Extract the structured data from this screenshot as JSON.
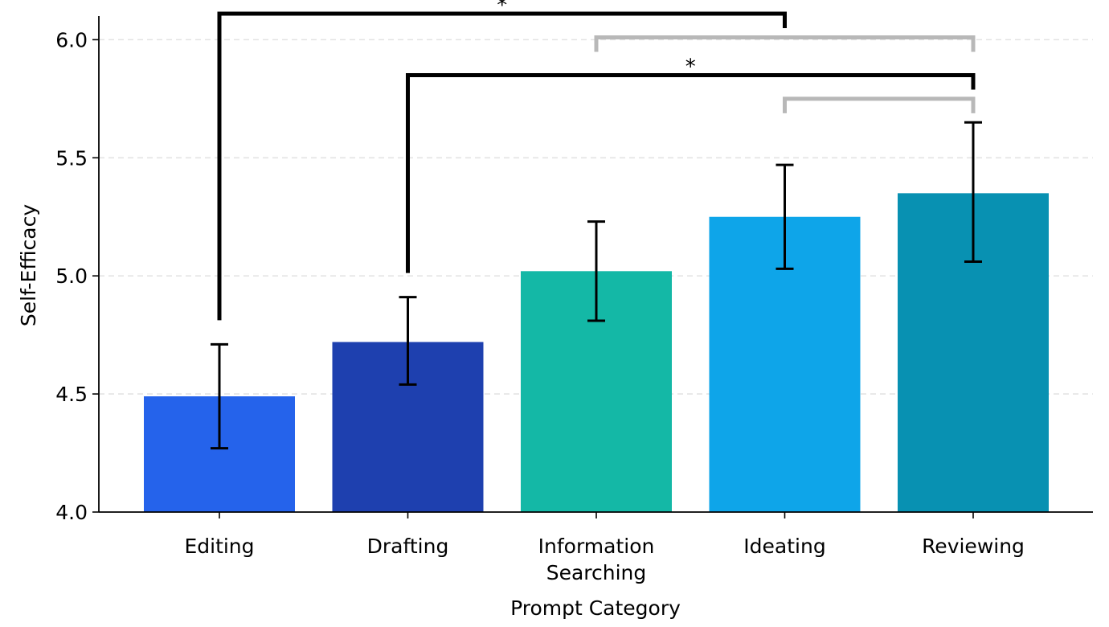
{
  "chart_data": {
    "type": "bar",
    "title": "",
    "xlabel": "Prompt Category",
    "ylabel": "Self-Efficacy",
    "ylim": [
      4.0,
      6.1
    ],
    "yticks": [
      "4.0",
      "4.5",
      "5.0",
      "5.5",
      "6.0"
    ],
    "grid": "horizontal-dashed",
    "categories": [
      {
        "lines": [
          "Editing"
        ]
      },
      {
        "lines": [
          "Drafting"
        ]
      },
      {
        "lines": [
          "Information",
          "Searching"
        ]
      },
      {
        "lines": [
          "Ideating"
        ]
      },
      {
        "lines": [
          "Reviewing"
        ]
      }
    ],
    "values": [
      4.49,
      4.72,
      5.02,
      5.25,
      5.35
    ],
    "error_low": [
      4.27,
      4.54,
      4.81,
      5.03,
      5.06
    ],
    "error_high": [
      4.71,
      4.91,
      5.23,
      5.47,
      5.65
    ],
    "colors": [
      "#2563eb",
      "#1e40af",
      "#14b8a6",
      "#0ea5e9",
      "#0891b2"
    ],
    "significance": [
      {
        "from": 0,
        "to": 3,
        "y": 6.11,
        "label": "*",
        "color": "#000000"
      },
      {
        "from": 2,
        "to": 4,
        "y": 6.01,
        "label": "",
        "color": "#b8b8b8"
      },
      {
        "from": 1,
        "to": 4,
        "y": 5.85,
        "label": "*",
        "color": "#000000"
      },
      {
        "from": 3,
        "to": 4,
        "y": 5.75,
        "label": "",
        "color": "#b8b8b8"
      }
    ]
  }
}
